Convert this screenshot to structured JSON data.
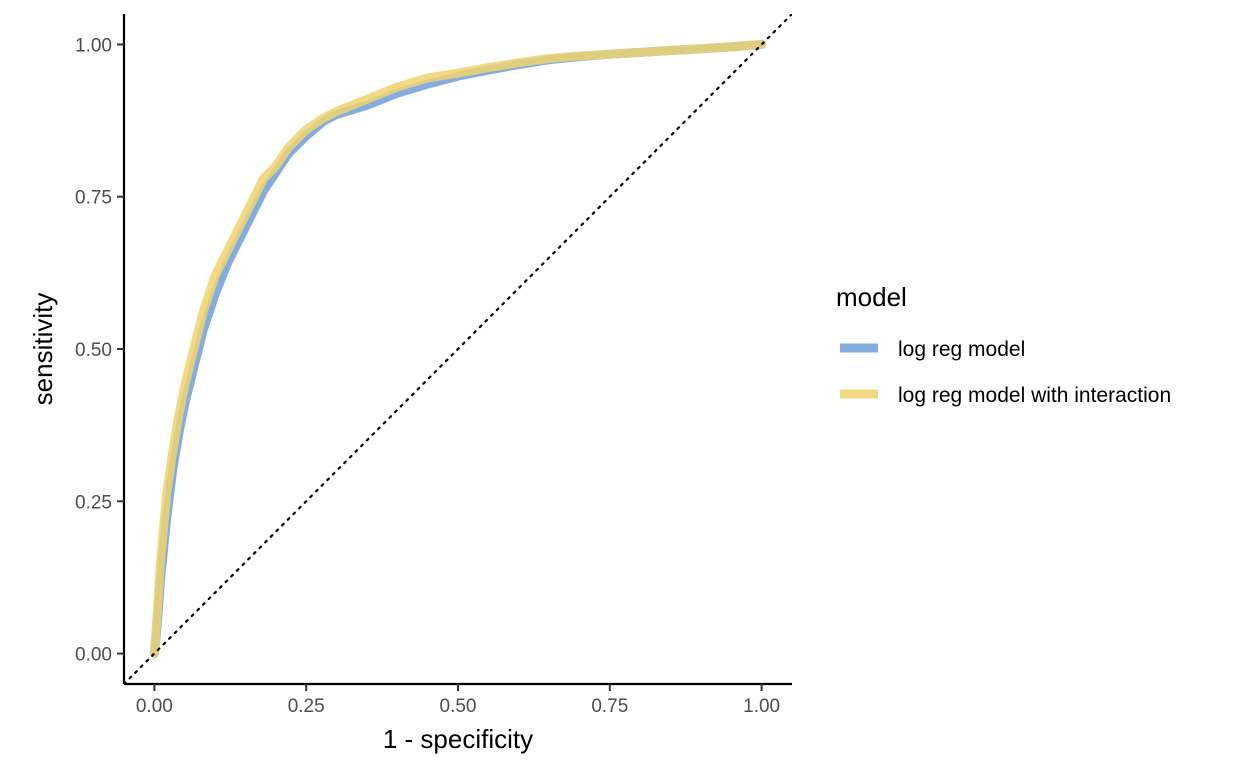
{
  "chart_data": {
    "type": "line",
    "title": "",
    "xlabel": "1 - specificity",
    "ylabel": "sensitivity",
    "xlim": [
      -0.05,
      1.05
    ],
    "ylim": [
      -0.05,
      1.05
    ],
    "x_ticks": [
      0,
      0.25,
      0.5,
      0.75,
      1.0
    ],
    "x_tick_labels": [
      "0.00",
      "0.25",
      "0.50",
      "0.75",
      "1.00"
    ],
    "y_ticks": [
      0,
      0.25,
      0.5,
      0.75,
      1.0
    ],
    "y_tick_labels": [
      "0.00",
      "0.25",
      "0.50",
      "0.75",
      "1.00"
    ],
    "grid": false,
    "legend": {
      "title": "model",
      "position": "right"
    },
    "reference_line": {
      "style": "dotted",
      "color": "#000000",
      "from": [
        -0.05,
        -0.05
      ],
      "to": [
        1.05,
        1.05
      ]
    },
    "series": [
      {
        "name": "log reg model",
        "color": "#6f9dd8",
        "x": [
          0,
          0.005,
          0.01,
          0.02,
          0.03,
          0.04,
          0.05,
          0.06,
          0.07,
          0.08,
          0.09,
          0.1,
          0.12,
          0.14,
          0.16,
          0.18,
          0.2,
          0.22,
          0.25,
          0.28,
          0.3,
          0.35,
          0.4,
          0.45,
          0.5,
          0.55,
          0.6,
          0.65,
          0.7,
          0.75,
          0.8,
          0.85,
          0.9,
          0.95,
          1.0
        ],
        "y": [
          0,
          0.05,
          0.12,
          0.22,
          0.3,
          0.36,
          0.41,
          0.45,
          0.49,
          0.53,
          0.56,
          0.59,
          0.64,
          0.68,
          0.72,
          0.76,
          0.79,
          0.82,
          0.85,
          0.875,
          0.885,
          0.9,
          0.92,
          0.935,
          0.948,
          0.958,
          0.967,
          0.975,
          0.98,
          0.984,
          0.987,
          0.99,
          0.993,
          0.996,
          1.0
        ]
      },
      {
        "name": "log reg model with interaction",
        "color": "#f0d470",
        "x": [
          0,
          0.005,
          0.01,
          0.02,
          0.03,
          0.04,
          0.05,
          0.06,
          0.07,
          0.08,
          0.09,
          0.1,
          0.12,
          0.14,
          0.16,
          0.18,
          0.2,
          0.22,
          0.25,
          0.28,
          0.3,
          0.35,
          0.4,
          0.45,
          0.5,
          0.55,
          0.6,
          0.65,
          0.7,
          0.75,
          0.8,
          0.85,
          0.9,
          0.95,
          1.0
        ],
        "y": [
          0,
          0.07,
          0.15,
          0.26,
          0.33,
          0.39,
          0.44,
          0.48,
          0.52,
          0.56,
          0.59,
          0.62,
          0.66,
          0.7,
          0.74,
          0.78,
          0.8,
          0.83,
          0.86,
          0.88,
          0.89,
          0.91,
          0.93,
          0.945,
          0.953,
          0.962,
          0.97,
          0.977,
          0.981,
          0.984,
          0.987,
          0.99,
          0.993,
          0.996,
          1.0
        ]
      }
    ]
  }
}
